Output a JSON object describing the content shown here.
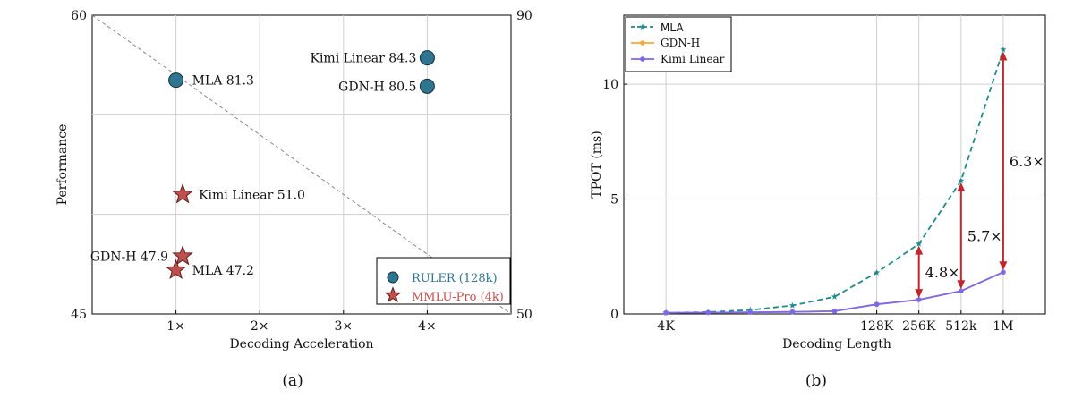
{
  "panel_a": {
    "caption": "(a)",
    "chart_data": {
      "type": "scatter",
      "xlabel": "Decoding Acceleration",
      "ylabel": "Performance",
      "x_ticks": [
        "1×",
        "2×",
        "3×",
        "4×"
      ],
      "x_tick_values": [
        1,
        2,
        3,
        4
      ],
      "xlim": [
        0,
        5
      ],
      "y_left_ticks": [
        "60",
        "45"
      ],
      "y_left_range": [
        45,
        60
      ],
      "y_right_ticks": [
        "90",
        "50"
      ],
      "y_right_range": [
        50,
        90
      ],
      "grid": true,
      "diagonal_reference_line": true,
      "legend_position": "bottom-right",
      "series": [
        {
          "name": "RULER (128k)",
          "marker": "circle",
          "color": "#2e7590",
          "axis": "right",
          "points": [
            {
              "label": "MLA 81.3",
              "x": 1.0,
              "y": 81.3
            },
            {
              "label": "Kimi Linear 84.3",
              "x": 4.0,
              "y": 84.3
            },
            {
              "label": "GDN-H 80.5",
              "x": 4.0,
              "y": 80.5
            }
          ]
        },
        {
          "name": "MMLU-Pro (4k)",
          "marker": "star",
          "color": "#c0504d",
          "axis": "left",
          "points": [
            {
              "label": "Kimi Linear 51.0",
              "x": 1.08,
              "y": 51.0
            },
            {
              "label": "GDN-H 47.9",
              "x": 1.08,
              "y": 47.9
            },
            {
              "label": "MLA 47.2",
              "x": 1.0,
              "y": 47.2
            }
          ]
        }
      ]
    }
  },
  "panel_b": {
    "caption": "(b)",
    "chart_data": {
      "type": "line",
      "xlabel": "Decoding Length",
      "ylabel": "TPOT (ms)",
      "x": [
        1,
        2,
        3,
        4,
        5,
        6,
        7,
        8,
        9
      ],
      "x_ticks": [
        {
          "label": "4K",
          "x": 1
        },
        {
          "label": "128K",
          "x": 6
        },
        {
          "label": "256K",
          "x": 7
        },
        {
          "label": "512k",
          "x": 8
        },
        {
          "label": "1M",
          "x": 9
        }
      ],
      "xlim": [
        0,
        10
      ],
      "y_ticks": [
        0,
        5,
        10
      ],
      "ylim": [
        0,
        13
      ],
      "grid": true,
      "legend_position": "top-left",
      "series": [
        {
          "name": "MLA",
          "color": "#1f8a8a",
          "style": "dashed",
          "marker": "star",
          "values": [
            0.05,
            0.08,
            0.17,
            0.37,
            0.75,
            1.8,
            3.05,
            5.8,
            11.5
          ]
        },
        {
          "name": "GDN-H",
          "color": "#f5a742",
          "style": "solid",
          "marker": "circle",
          "values": [
            0.05,
            0.06,
            0.07,
            0.09,
            0.12,
            0.42,
            0.62,
            1.0,
            1.82
          ]
        },
        {
          "name": "Kimi Linear",
          "color": "#7b68ee",
          "style": "solid",
          "marker": "circle",
          "values": [
            0.05,
            0.06,
            0.07,
            0.09,
            0.12,
            0.42,
            0.62,
            1.0,
            1.82
          ]
        }
      ],
      "annotations": [
        {
          "label": "4.8×",
          "x": 7,
          "from": 0.62,
          "to": 3.05
        },
        {
          "label": "5.7×",
          "x": 8,
          "from": 1.0,
          "to": 5.8
        },
        {
          "label": "6.3×",
          "x": 9,
          "from": 1.82,
          "to": 11.5
        }
      ]
    }
  }
}
